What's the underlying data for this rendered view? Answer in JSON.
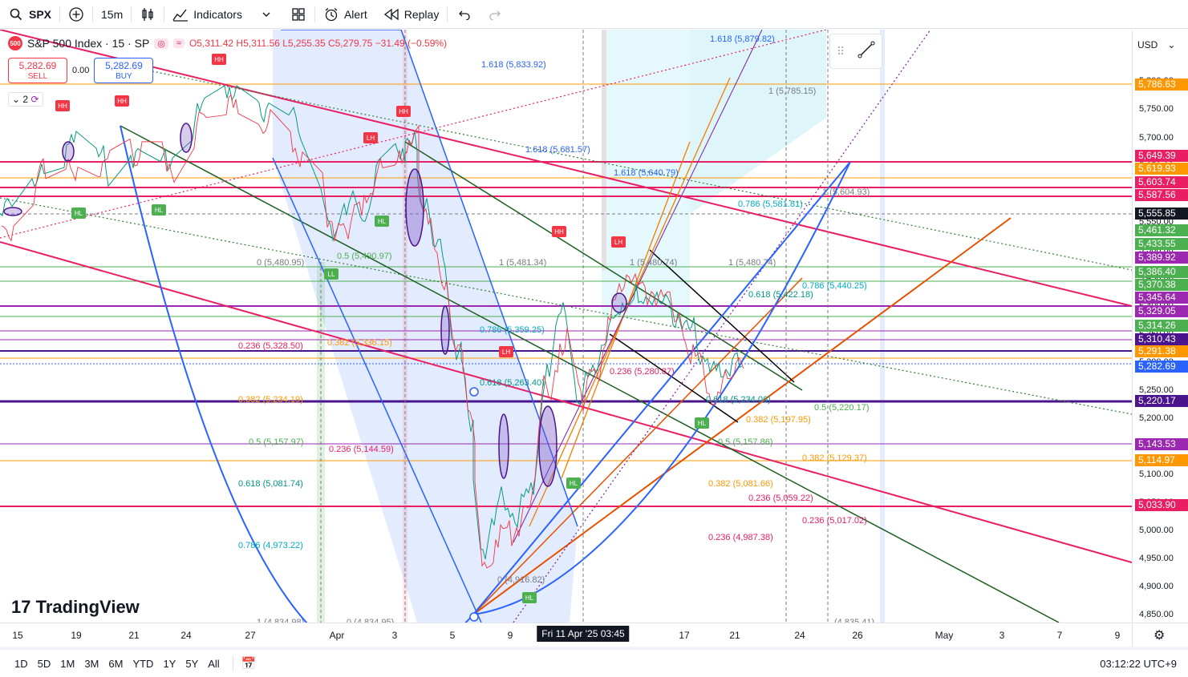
{
  "toolbar": {
    "symbol": "SPX",
    "interval": "15m",
    "indicators_label": "Indicators",
    "alert_label": "Alert",
    "replay_label": "Replay"
  },
  "legend": {
    "title": "S&P 500 Index · 15 · SP",
    "badge": "500",
    "ohlc": "O5,311.42 H5,311.56 L5,255.35 C5,279.75 −31.49 (−0.59%)"
  },
  "trade": {
    "sell_price": "5,282.69",
    "sell_label": "SELL",
    "spread": "0.00",
    "buy_price": "5,282.69",
    "buy_label": "BUY"
  },
  "indicators_collapse": "2",
  "logo_text": "TradingView",
  "currency": "USD",
  "price_ticks": [
    "5,800.00",
    "5,750.00",
    "5,700.00",
    "5,650.00",
    "5,600.00",
    "5,550.00",
    "5,500.00",
    "5,450.00",
    "5,400.00",
    "5,350.00",
    "5,300.00",
    "5,250.00",
    "5,200.00",
    "5,150.00",
    "5,100.00",
    "5,050.00",
    "5,000.00",
    "4,950.00",
    "4,900.00",
    "4,850.00"
  ],
  "price_labels": [
    {
      "text": "5,786.63",
      "color": "#ff9800"
    },
    {
      "text": "5,649.39",
      "color": "#e91e63"
    },
    {
      "text": "5,619.93",
      "color": "#ff9800"
    },
    {
      "text": "5,603.74",
      "color": "#e91e63"
    },
    {
      "text": "5,587.56",
      "color": "#e91e63"
    },
    {
      "text": "5,555.85",
      "color": "#131722"
    },
    {
      "text": "5,461.32",
      "color": "#4caf50"
    },
    {
      "text": "5,433.55",
      "color": "#4caf50"
    },
    {
      "text": "5,389.92",
      "color": "#9c27b0"
    },
    {
      "text": "5,386.40",
      "color": "#4caf50"
    },
    {
      "text": "5,370.38",
      "color": "#4caf50"
    },
    {
      "text": "5,345.64",
      "color": "#9c27b0"
    },
    {
      "text": "5,329.05",
      "color": "#9c27b0"
    },
    {
      "text": "5,314.26",
      "color": "#4caf50"
    },
    {
      "text": "5,310.43",
      "color": "#4a148c"
    },
    {
      "text": "5,291.38",
      "color": "#ff9800"
    },
    {
      "text": "5,282.69",
      "color": "#2962ff"
    },
    {
      "text": "5,220.17",
      "color": "#4a148c"
    },
    {
      "text": "5,143.53",
      "color": "#9c27b0"
    },
    {
      "text": "5,114.97",
      "color": "#ff9800"
    },
    {
      "text": "5,033.90",
      "color": "#e91e63"
    }
  ],
  "time_ticks": [
    "15",
    "19",
    "21",
    "24",
    "27",
    "Apr",
    "3",
    "5",
    "9",
    "17",
    "21",
    "24",
    "26",
    "May",
    "3",
    "7",
    "9"
  ],
  "time_cursor": "Fri 11 Apr '25   03:45",
  "chart_annotations": [
    "1.618 (5,833.92)",
    "1.618 (5,681.57)",
    "1.618 (5,879.82)",
    "1.618 (5,640.79)",
    "1 (5,785.15)",
    "1 (5,604.93)",
    "0.786 (5,581.81)",
    "0 (5,480.95)",
    "0.5 (5,490.97)",
    "1 (5,481.34)",
    "1 (5,480.74)",
    "1 (5,480.74)",
    "0.786 (5,440.25)",
    "0.618 (5,422.18)",
    "0.786 (5,359.25)",
    "0.236 (5,328.50)",
    "0.382 (5,336.15)",
    "0.382 (5,234.19)",
    "0.618 (5,263.40)",
    "0.5 (5,220.17)",
    "0.382 (5,197.95)",
    "0.5 (5,157.86)",
    "0.5 (5,157.97)",
    "0.236 (5,144.59)",
    "0.382 (5,129.37)",
    "0.618 (5,081.74)",
    "0.382 (5,081.66)",
    "0.236 (5,059.22)",
    "0.236 (5,017.02)",
    "0.236 (4,987.38)",
    "0.786 (4,973.22)",
    "0 (4,916.82)",
    "1 (4,834.98)",
    "0 (4,834.95)",
    "(4,835.41)",
    "0.618 (5,234.06)",
    "0.236 (5,280.87)"
  ],
  "pattern_markers": [
    "HH",
    "HH",
    "HH",
    "HH",
    "LH",
    "HH",
    "LH",
    "LH",
    "HL",
    "HL",
    "HL",
    "LL",
    "HL",
    "HL",
    "HL"
  ],
  "bottom": {
    "ranges": [
      "1D",
      "5D",
      "1M",
      "3M",
      "6M",
      "YTD",
      "1Y",
      "5Y",
      "All"
    ],
    "clock": "03:12:22 UTC+9"
  },
  "colors": {
    "up": "#089981",
    "down": "#f23645",
    "accent": "#2962ff"
  }
}
